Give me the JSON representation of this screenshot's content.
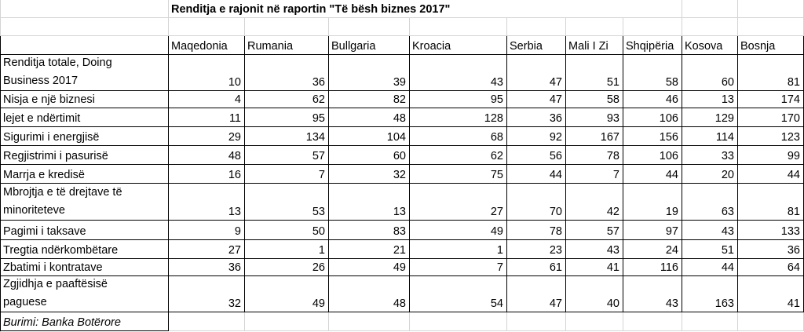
{
  "title": "Renditja e rajonit në raportin \"Të bësh biznes 2017\"",
  "columns": [
    "Maqedonia",
    "Rumania",
    "Bullgaria",
    "Kroacia",
    "Serbia",
    "Mali I Zi",
    "Shqipëria",
    "Kosova",
    "Bosnja"
  ],
  "rows": [
    {
      "label": [
        "Renditja totale, Doing",
        "Business 2017"
      ],
      "values": [
        "10",
        "36",
        "39",
        "43",
        "47",
        "51",
        "58",
        "60",
        "81"
      ]
    },
    {
      "label": [
        "Nisja e një biznesi"
      ],
      "values": [
        "4",
        "62",
        "82",
        "95",
        "47",
        "58",
        "46",
        "13",
        "174"
      ]
    },
    {
      "label": [
        "lejet e ndërtimit"
      ],
      "values": [
        "11",
        "95",
        "48",
        "128",
        "36",
        "93",
        "106",
        "129",
        "170"
      ]
    },
    {
      "label": [
        "Sigurimi i energjisë"
      ],
      "values": [
        "29",
        "134",
        "104",
        "68",
        "92",
        "167",
        "156",
        "114",
        "123"
      ]
    },
    {
      "label": [
        "Regjistrimi i pasurisë"
      ],
      "values": [
        "48",
        "57",
        "60",
        "62",
        "56",
        "78",
        "106",
        "33",
        "99"
      ]
    },
    {
      "label": [
        "Marrja e kredisë"
      ],
      "values": [
        "16",
        "7",
        "32",
        "75",
        "44",
        "7",
        "44",
        "20",
        "44"
      ]
    },
    {
      "label": [
        "Mbrojtja e të drejtave të",
        "minoriteteve"
      ],
      "values": [
        "13",
        "53",
        "13",
        "27",
        "70",
        "42",
        "19",
        "63",
        "81"
      ]
    },
    {
      "label": [
        "Pagimi i taksave"
      ],
      "values": [
        "9",
        "50",
        "83",
        "49",
        "78",
        "57",
        "97",
        "43",
        "133"
      ]
    },
    {
      "label": [
        "Tregtia ndërkombëtare"
      ],
      "values": [
        "27",
        "1",
        "21",
        "1",
        "23",
        "43",
        "24",
        "51",
        "36"
      ]
    },
    {
      "label": [
        "Zbatimi i kontratave"
      ],
      "values": [
        "36",
        "26",
        "49",
        "7",
        "61",
        "41",
        "116",
        "44",
        "64"
      ]
    },
    {
      "label": [
        "Zgjidhja e paaftësisë",
        "paguese"
      ],
      "values": [
        "32",
        "49",
        "48",
        "54",
        "47",
        "40",
        "43",
        "163",
        "41"
      ]
    }
  ],
  "footer": "Burimi: Banka Botërore"
}
